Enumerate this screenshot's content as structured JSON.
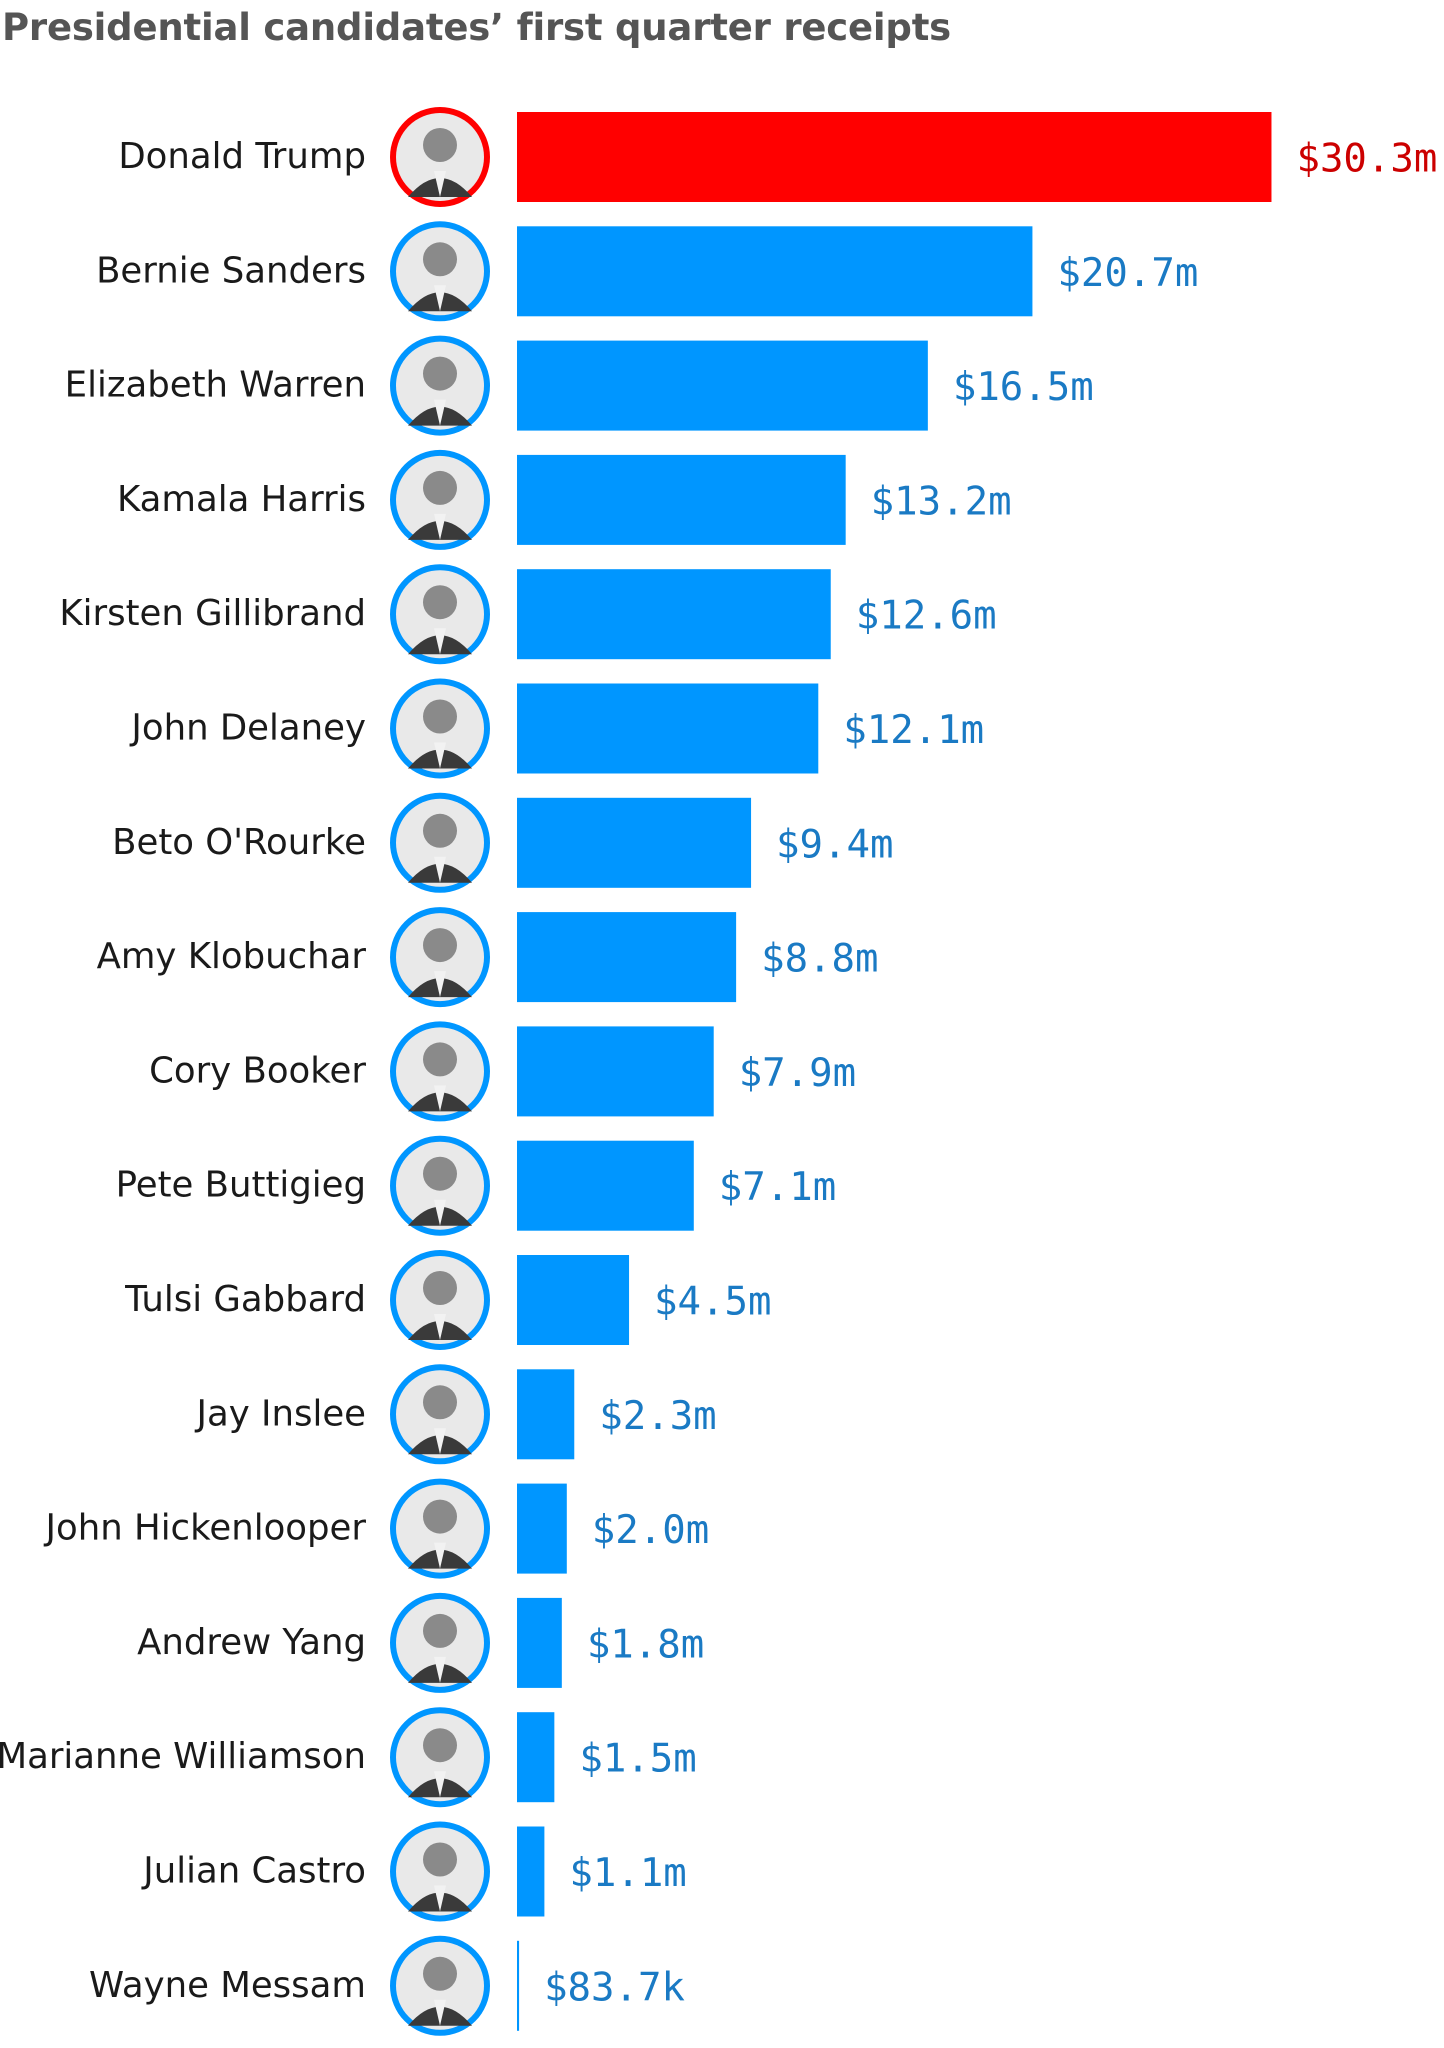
{
  "chart_data": {
    "type": "bar",
    "orientation": "horizontal",
    "title": "Presidential candidates’ first quarter receipts",
    "xlabel": "",
    "ylabel": "",
    "unit": "USD",
    "grid": false,
    "legend": "none",
    "colors": {
      "highlight": "#FF0000",
      "highlight_label": "#CC0000",
      "default": "#0096FF",
      "default_label": "#1A7AC4",
      "avatar_ring_highlight": "#FF0000",
      "avatar_ring_default": "#0096FF"
    },
    "categories": [
      "Donald Trump",
      "Bernie Sanders",
      "Elizabeth Warren",
      "Kamala Harris",
      "Kirsten Gillibrand",
      "John Delaney",
      "Beto O'Rourke",
      "Amy Klobuchar",
      "Cory Booker",
      "Pete Buttigieg",
      "Tulsi Gabbard",
      "Jay Inslee",
      "John Hickenlooper",
      "Andrew Yang",
      "Marianne Williamson",
      "Julian Castro",
      "Wayne Messam"
    ],
    "values": [
      30.3,
      20.7,
      16.5,
      13.2,
      12.6,
      12.1,
      9.4,
      8.8,
      7.9,
      7.1,
      4.5,
      2.3,
      2.0,
      1.8,
      1.5,
      1.1,
      0.0837
    ],
    "value_units": "millions USD",
    "value_labels": [
      "$30.3m",
      "$20.7m",
      "$16.5m",
      "$13.2m",
      "$12.6m",
      "$12.1m",
      "$9.4m",
      "$8.8m",
      "$7.9m",
      "$7.1m",
      "$4.5m",
      "$2.3m",
      "$2.0m",
      "$1.8m",
      "$1.5m",
      "$1.1m",
      "$83.7k"
    ],
    "highlight": [
      "Donald Trump"
    ],
    "avatar_icon": "candidate-photo-icon"
  }
}
